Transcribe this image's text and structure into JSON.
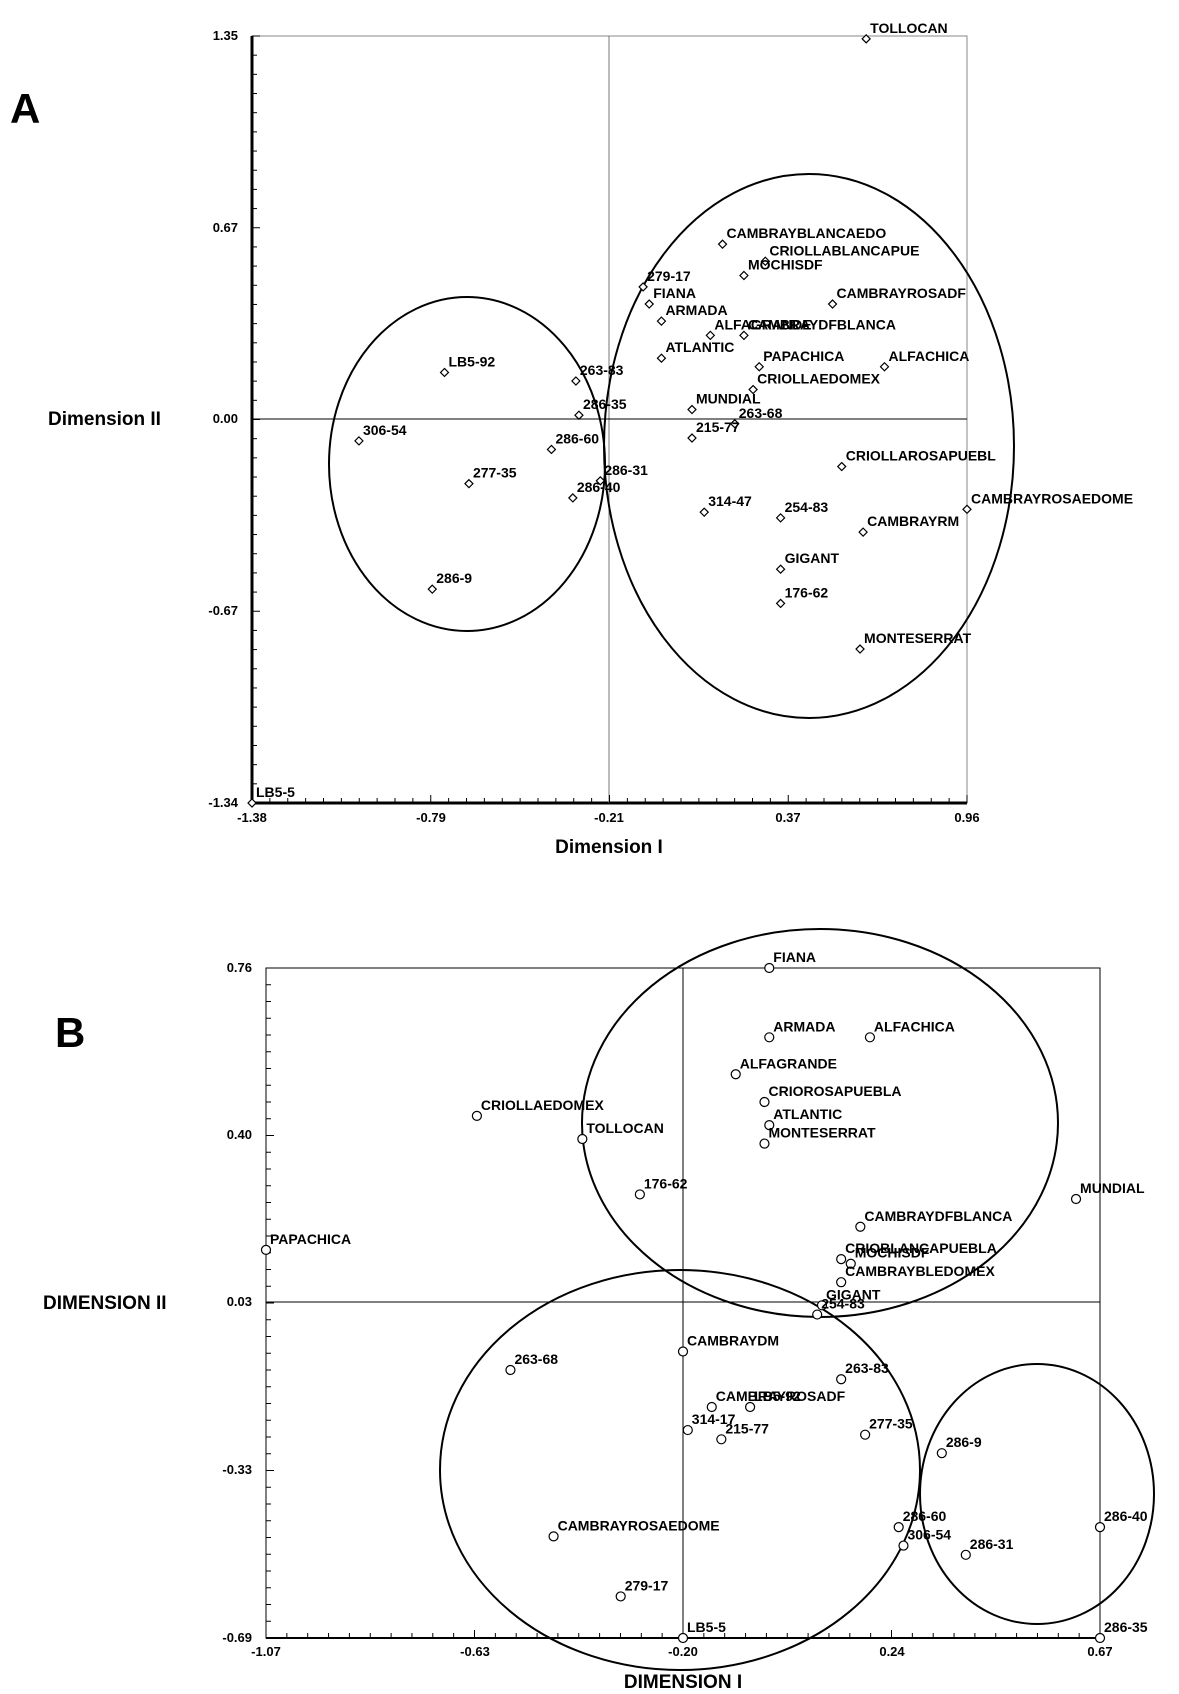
{
  "chart_data": [
    {
      "panel_label": "A",
      "type": "scatter",
      "xlabel": "Dimension I",
      "ylabel": "Dimension II",
      "xlim": [
        -1.38,
        0.96
      ],
      "ylim": [
        -1.34,
        1.35
      ],
      "x_ticks": [
        "-1.38",
        "-0.79",
        "-0.21",
        "0.37",
        "0.96"
      ],
      "y_ticks": [
        "1.35",
        "0.67",
        "0.00",
        "-0.67",
        "-1.34"
      ],
      "ref_x": -0.21,
      "ref_y": 0.0,
      "points": [
        {
          "label": "TOLLOCAN",
          "x": 0.63,
          "y": 1.34
        },
        {
          "label": "CAMBRAYBLANCAEDO",
          "x": 0.16,
          "y": 0.62
        },
        {
          "label": "CRIOLLABLANCAPUE",
          "x": 0.3,
          "y": 0.56
        },
        {
          "label": "MOCHISDF",
          "x": 0.23,
          "y": 0.51
        },
        {
          "label": "279-17",
          "x": -0.1,
          "y": 0.47
        },
        {
          "label": "FIANA",
          "x": -0.08,
          "y": 0.41
        },
        {
          "label": "ARMADA",
          "x": -0.04,
          "y": 0.35
        },
        {
          "label": "ALFAGRANDE",
          "x": 0.12,
          "y": 0.3
        },
        {
          "label": "CAMBRAYDFBLANCA",
          "x": 0.23,
          "y": 0.3
        },
        {
          "label": "CAMBRAYROSADF",
          "x": 0.52,
          "y": 0.41
        },
        {
          "label": "ATLANTIC",
          "x": -0.04,
          "y": 0.22
        },
        {
          "label": "PAPACHICA",
          "x": 0.28,
          "y": 0.19
        },
        {
          "label": "ALFACHICA",
          "x": 0.69,
          "y": 0.19
        },
        {
          "label": "LB5-92",
          "x": -0.75,
          "y": 0.17
        },
        {
          "label": "263-83",
          "x": -0.32,
          "y": 0.14
        },
        {
          "label": "CRIOLLAEDOMEX",
          "x": 0.26,
          "y": 0.11
        },
        {
          "label": "MUNDIAL",
          "x": 0.06,
          "y": 0.04
        },
        {
          "label": "286-35",
          "x": -0.31,
          "y": 0.02
        },
        {
          "label": "263-68",
          "x": 0.2,
          "y": -0.01
        },
        {
          "label": "215-77",
          "x": 0.06,
          "y": -0.06
        },
        {
          "label": "306-54",
          "x": -1.03,
          "y": -0.07
        },
        {
          "label": "286-60",
          "x": -0.4,
          "y": -0.1
        },
        {
          "label": "CRIOLLAROSAPUEBL",
          "x": 0.55,
          "y": -0.16
        },
        {
          "label": "277-35",
          "x": -0.67,
          "y": -0.22
        },
        {
          "label": "286-31",
          "x": -0.24,
          "y": -0.21
        },
        {
          "label": "286-40",
          "x": -0.33,
          "y": -0.27
        },
        {
          "label": "314-47",
          "x": 0.1,
          "y": -0.32
        },
        {
          "label": "254-83",
          "x": 0.35,
          "y": -0.34
        },
        {
          "label": "CAMBRAYROSAEDOME",
          "x": 0.96,
          "y": -0.31
        },
        {
          "label": "CAMBRAYRM",
          "x": 0.62,
          "y": -0.39
        },
        {
          "label": "GIGANT",
          "x": 0.35,
          "y": -0.52
        },
        {
          "label": "176-62",
          "x": 0.35,
          "y": -0.64
        },
        {
          "label": "286-9",
          "x": -0.79,
          "y": -0.59
        },
        {
          "label": "MONTESERRAT",
          "x": 0.61,
          "y": -0.8
        },
        {
          "label": "LB5-5",
          "x": -1.38,
          "y": -1.34
        }
      ]
    },
    {
      "panel_label": "B",
      "type": "scatter",
      "xlabel": "DIMENSION I",
      "ylabel": "DIMENSION II",
      "xlim": [
        -1.07,
        0.67
      ],
      "ylim": [
        -0.69,
        0.76
      ],
      "x_ticks": [
        "-1.07",
        "-0.63",
        "-0.20",
        "0.24",
        "0.67"
      ],
      "y_ticks": [
        "0.76",
        "0.40",
        "0.03",
        "-0.33",
        "-0.69"
      ],
      "ref_x": -0.2,
      "ref_y": 0.03,
      "points": [
        {
          "label": "FIANA",
          "x": -0.02,
          "y": 0.76
        },
        {
          "label": "ARMADA",
          "x": -0.02,
          "y": 0.61
        },
        {
          "label": "ALFACHICA",
          "x": 0.19,
          "y": 0.61
        },
        {
          "label": "ALFAGRANDE",
          "x": -0.09,
          "y": 0.53
        },
        {
          "label": "CRIOLLAEDOMEX",
          "x": -0.63,
          "y": 0.44
        },
        {
          "label": "CRIOROSAPUEBLA",
          "x": -0.03,
          "y": 0.47
        },
        {
          "label": "ATLANTIC",
          "x": -0.02,
          "y": 0.42
        },
        {
          "label": "TOLLOCAN",
          "x": -0.41,
          "y": 0.39
        },
        {
          "label": "MONTESERRAT",
          "x": -0.03,
          "y": 0.38
        },
        {
          "label": "176-62",
          "x": -0.29,
          "y": 0.27
        },
        {
          "label": "MUNDIAL",
          "x": 0.62,
          "y": 0.26
        },
        {
          "label": "PAPACHICA",
          "x": -1.07,
          "y": 0.15
        },
        {
          "label": "CAMBRAYDFBLANCA",
          "x": 0.17,
          "y": 0.2
        },
        {
          "label": "CRIOBLANCAPUEBLA",
          "x": 0.13,
          "y": 0.13
        },
        {
          "label": "MOCHISDF",
          "x": 0.15,
          "y": 0.12
        },
        {
          "label": "CAMBRAYBLEDOMEX",
          "x": 0.13,
          "y": 0.08
        },
        {
          "label": "GIGANT",
          "x": 0.09,
          "y": 0.03
        },
        {
          "label": "254-83",
          "x": 0.08,
          "y": 0.01
        },
        {
          "label": "CAMBRAYDM",
          "x": -0.2,
          "y": -0.07
        },
        {
          "label": "263-83",
          "x": 0.13,
          "y": -0.13
        },
        {
          "label": "263-68",
          "x": -0.56,
          "y": -0.11
        },
        {
          "label": "CAMBRAYROSADF",
          "x": -0.14,
          "y": -0.19
        },
        {
          "label": "LB5-92",
          "x": -0.06,
          "y": -0.19
        },
        {
          "label": "314-17",
          "x": -0.19,
          "y": -0.24
        },
        {
          "label": "215-77",
          "x": -0.12,
          "y": -0.26
        },
        {
          "label": "277-35",
          "x": 0.18,
          "y": -0.25
        },
        {
          "label": "286-9",
          "x": 0.34,
          "y": -0.29
        },
        {
          "label": "286-60",
          "x": 0.25,
          "y": -0.45
        },
        {
          "label": "306-54",
          "x": 0.26,
          "y": -0.49
        },
        {
          "label": "286-31",
          "x": 0.39,
          "y": -0.51
        },
        {
          "label": "286-40",
          "x": 0.67,
          "y": -0.45
        },
        {
          "label": "CAMBRAYROSAEDOME",
          "x": -0.47,
          "y": -0.47
        },
        {
          "label": "279-17",
          "x": -0.33,
          "y": -0.6
        },
        {
          "label": "LB5-5",
          "x": -0.2,
          "y": -0.69
        },
        {
          "label": "286-35",
          "x": 0.67,
          "y": -0.69
        }
      ]
    }
  ]
}
